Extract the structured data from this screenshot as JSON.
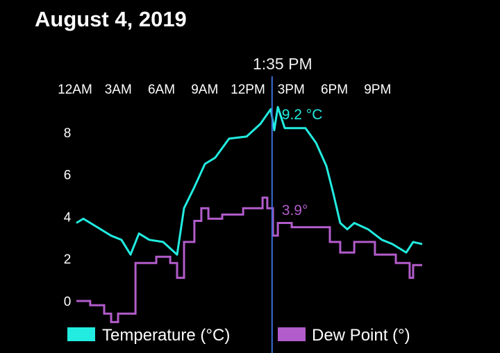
{
  "title": "August 4, 2019",
  "cursor": {
    "time_label": "1:35 PM",
    "hour": 13.58,
    "temperature_label": "9.2 °C",
    "dew_point_label": "3.9°"
  },
  "colors": {
    "temperature": "#22ece0",
    "dew_point": "#b25ccb",
    "cursor": "#3b6fd9",
    "background": "#000000"
  },
  "chart_data": {
    "type": "line",
    "title": "August 4, 2019",
    "x_tick_labels": [
      "12AM",
      "3AM",
      "6AM",
      "9AM",
      "12PM",
      "3PM",
      "6PM",
      "9PM"
    ],
    "x_ticks_hours": [
      0,
      3,
      6,
      9,
      12,
      15,
      18,
      21
    ],
    "xlim": [
      0,
      24
    ],
    "y_tick_labels": [
      "0",
      "2",
      "4",
      "6",
      "8"
    ],
    "y_ticks": [
      0,
      2,
      4,
      6,
      8
    ],
    "ylim": [
      -1.2,
      9.5
    ],
    "grid": false,
    "legend_position": "bottom",
    "series": [
      {
        "name": "Temperature (°C)",
        "x": [
          0,
          0.48,
          1.45,
          2.41,
          3.13,
          3.76,
          4.34,
          5.06,
          6.02,
          6.99,
          7.47,
          8.19,
          8.92,
          9.64,
          10.6,
          11.81,
          12.77,
          13.49,
          13.73,
          13.98,
          14.46,
          15.9,
          16.63,
          17.35,
          17.83,
          18.31,
          18.8,
          19.28,
          20.24,
          21.2,
          21.93,
          22.89,
          23.37,
          24
        ],
        "y": [
          3.7,
          3.9,
          3.5,
          3.1,
          2.9,
          2.2,
          3.2,
          2.9,
          2.8,
          2.2,
          4.4,
          5.4,
          6.5,
          6.8,
          7.7,
          7.8,
          8.4,
          9.1,
          8.1,
          9.2,
          8.2,
          8.2,
          7.5,
          6.4,
          5.1,
          3.7,
          3.4,
          3.7,
          3.4,
          2.9,
          2.7,
          2.3,
          2.8,
          2.7
        ]
      },
      {
        "name": "Dew Point (°)",
        "x": [
          0,
          0.96,
          1.93,
          2.41,
          2.89,
          3.61,
          4.1,
          4.82,
          5.54,
          6.51,
          6.99,
          7.47,
          8.19,
          8.67,
          9.16,
          10.12,
          11.57,
          12.92,
          13.25,
          13.64,
          13.98,
          14.94,
          16.87,
          17.59,
          18.31,
          19.28,
          20.48,
          20.72,
          22.17,
          23.13,
          23.37,
          24
        ],
        "y": [
          0,
          -0.2,
          -0.6,
          -1.0,
          -0.6,
          -0.6,
          1.8,
          1.8,
          2.1,
          1.8,
          1.1,
          2.8,
          3.8,
          4.4,
          3.9,
          4.1,
          4.4,
          4.9,
          4.4,
          3.1,
          3.7,
          3.5,
          3.5,
          2.8,
          2.3,
          2.8,
          2.8,
          2.2,
          1.8,
          1.1,
          1.7,
          1.7
        ]
      }
    ]
  }
}
